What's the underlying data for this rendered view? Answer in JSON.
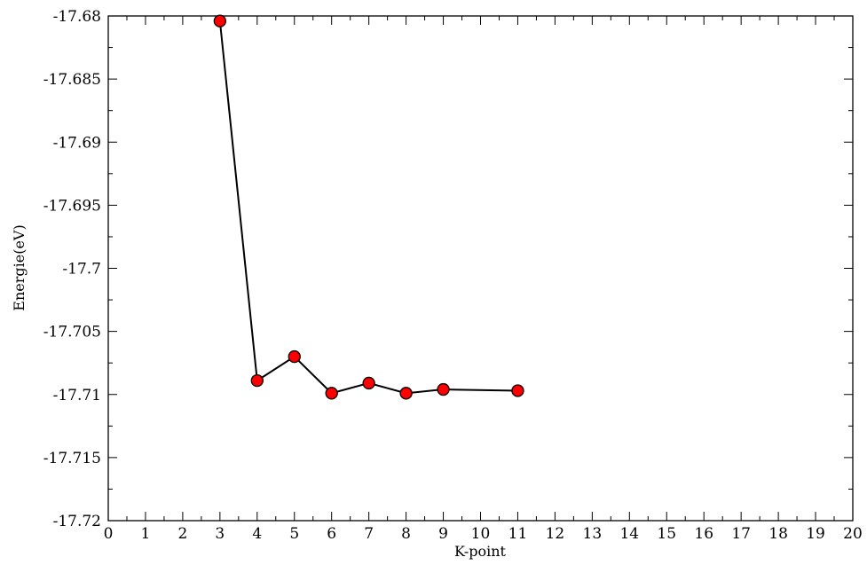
{
  "chart_data": {
    "type": "line",
    "title": "",
    "xlabel": "K-point",
    "ylabel": "Energie(eV)",
    "xlim": [
      0,
      20
    ],
    "ylim": [
      -17.72,
      -17.68
    ],
    "x_ticks": [
      0,
      1,
      2,
      3,
      4,
      5,
      6,
      7,
      8,
      9,
      10,
      11,
      12,
      13,
      14,
      15,
      16,
      17,
      18,
      19,
      20
    ],
    "y_ticks": [
      -17.68,
      -17.685,
      -17.69,
      -17.695,
      -17.7,
      -17.705,
      -17.71,
      -17.715,
      -17.72
    ],
    "y_tick_labels": [
      "-17.68",
      "-17.685",
      "-17.69",
      "-17.695",
      "-17.7",
      "-17.705",
      "-17.71",
      "-17.715",
      "-17.72"
    ],
    "grid": false,
    "legend": "none",
    "series": [
      {
        "x": [
          3,
          4,
          5,
          6,
          7,
          8,
          9,
          11
        ],
        "y": [
          -17.6804,
          -17.7089,
          -17.707,
          -17.7099,
          -17.7091,
          -17.7099,
          -17.7096,
          -17.7097
        ],
        "line_color": "#000000",
        "marker_color": "#ff0000",
        "marker": "circle"
      }
    ]
  }
}
